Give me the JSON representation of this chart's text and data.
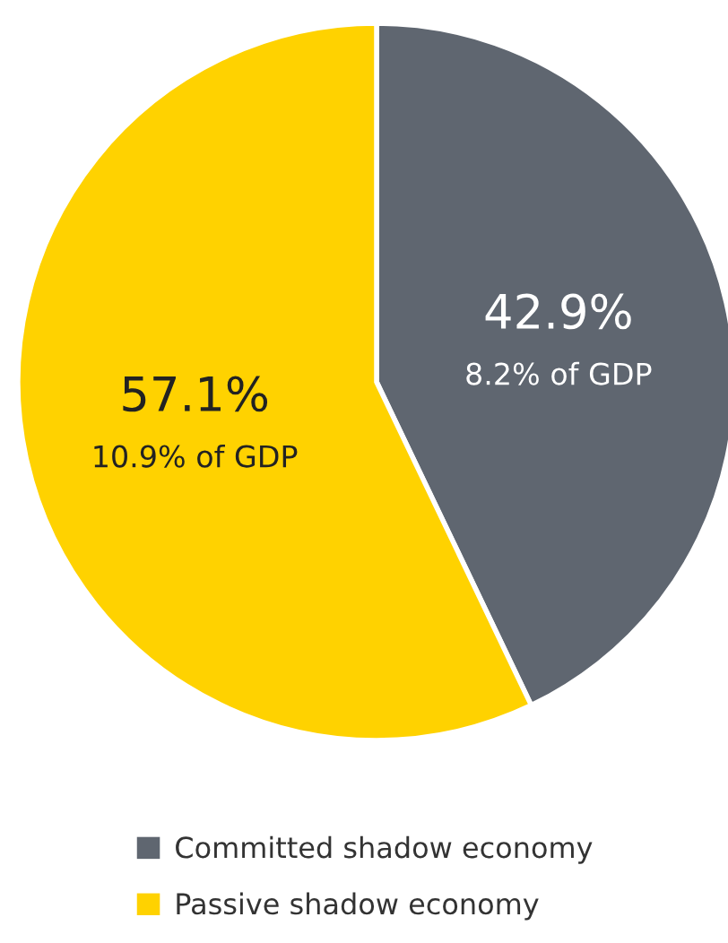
{
  "chart_data": {
    "type": "pie",
    "categories": [
      "Committed shadow economy",
      "Passive shadow economy"
    ],
    "values": [
      42.9,
      57.1
    ],
    "colors": [
      "#5f6670",
      "#ffd200"
    ],
    "value_labels": [
      "42.9%",
      "57.1%"
    ],
    "annotations": [
      "8.2% of GDP",
      "10.9% of GDP"
    ],
    "legend": "bottom"
  }
}
